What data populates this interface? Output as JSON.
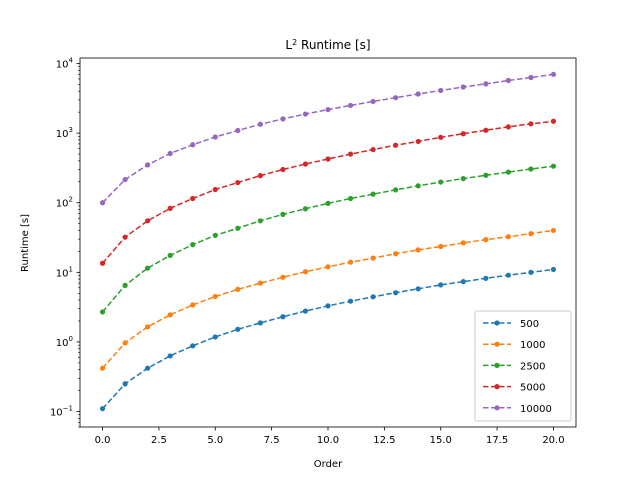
{
  "chart_data": {
    "type": "line",
    "title_base": "L",
    "title_sup": "2",
    "title_rest": " Runtime [s]",
    "xlabel": "Order",
    "ylabel": "Runtime [s]",
    "yscale": "log",
    "xlim": [
      -1,
      21
    ],
    "ylim": [
      0.06,
      12000
    ],
    "xticks": [
      0,
      2.5,
      5,
      7.5,
      10,
      12.5,
      15,
      17.5,
      20
    ],
    "xtick_labels": [
      "0.0",
      "2.5",
      "5.0",
      "7.5",
      "10.0",
      "12.5",
      "15.0",
      "17.5",
      "20.0"
    ],
    "yticks": [
      0.1,
      1,
      10,
      100,
      1000,
      10000
    ],
    "ytick_labels": [
      {
        "base": "10",
        "exp": "−1"
      },
      {
        "base": "10",
        "exp": "0"
      },
      {
        "base": "10",
        "exp": "1"
      },
      {
        "base": "10",
        "exp": "2"
      },
      {
        "base": "10",
        "exp": "3"
      },
      {
        "base": "10",
        "exp": "4"
      }
    ],
    "grid": false,
    "legend_position": "lower-right",
    "line_style": "dashed",
    "marker": "circle",
    "x": [
      0,
      1,
      2,
      3,
      4,
      5,
      6,
      7,
      8,
      9,
      10,
      11,
      12,
      13,
      14,
      15,
      16,
      17,
      18,
      19,
      20
    ],
    "series": [
      {
        "name": "500",
        "color": "#1f77b4",
        "values": [
          0.11,
          0.25,
          0.42,
          0.63,
          0.88,
          1.18,
          1.52,
          1.88,
          2.3,
          2.78,
          3.3,
          3.85,
          4.45,
          5.1,
          5.8,
          6.6,
          7.35,
          8.2,
          9.1,
          10.0,
          11.0
        ]
      },
      {
        "name": "1000",
        "color": "#ff7f0e",
        "values": [
          0.42,
          0.97,
          1.65,
          2.45,
          3.4,
          4.5,
          5.7,
          7.0,
          8.5,
          10.2,
          12.0,
          14.0,
          16.0,
          18.5,
          21.0,
          23.5,
          26.5,
          29.5,
          32.5,
          36.0,
          40.0
        ]
      },
      {
        "name": "2500",
        "color": "#2ca02c",
        "values": [
          2.7,
          6.5,
          11.5,
          17.5,
          25,
          34,
          43,
          55,
          68,
          82,
          98,
          115,
          133,
          153,
          175,
          198,
          222,
          248,
          275,
          305,
          335
        ]
      },
      {
        "name": "5000",
        "color": "#d62728",
        "values": [
          13.5,
          32,
          55,
          83,
          115,
          155,
          195,
          245,
          300,
          360,
          425,
          500,
          580,
          670,
          760,
          870,
          980,
          1100,
          1230,
          1360,
          1480
        ]
      },
      {
        "name": "10000",
        "color": "#9467bd",
        "values": [
          100,
          215,
          350,
          510,
          680,
          880,
          1090,
          1340,
          1600,
          1880,
          2180,
          2500,
          2850,
          3230,
          3650,
          4100,
          4600,
          5100,
          5700,
          6300,
          7000
        ]
      }
    ]
  }
}
